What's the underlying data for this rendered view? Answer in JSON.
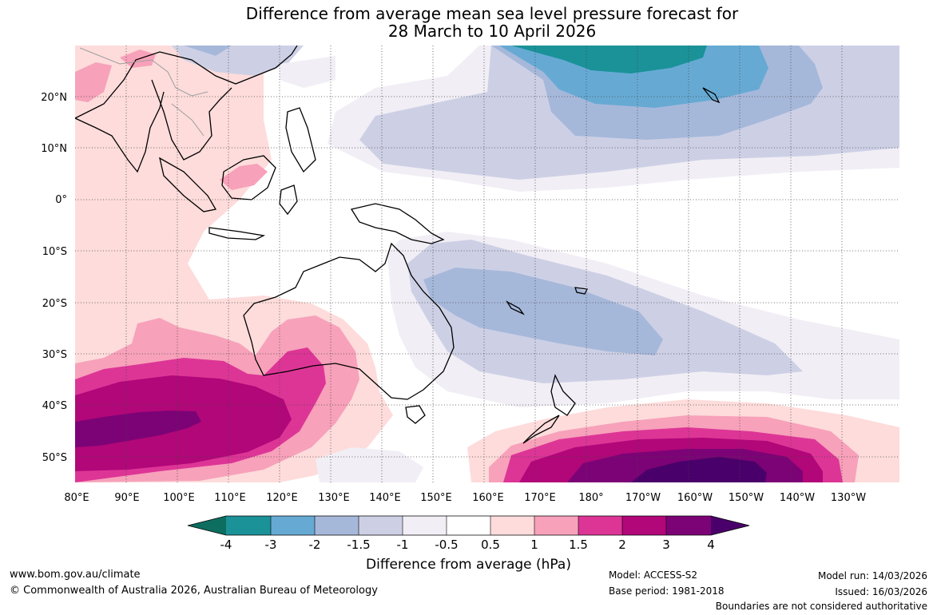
{
  "title": {
    "line1": "Difference from average mean sea level pressure forecast for",
    "line2": "28 March to 10 April 2026"
  },
  "axes": {
    "lon_labels": [
      "80°E",
      "90°E",
      "100°E",
      "110°E",
      "120°E",
      "130°E",
      "140°E",
      "150°E",
      "160°E",
      "170°E",
      "180°",
      "170°W",
      "160°W",
      "150°W",
      "140°W",
      "130°W"
    ],
    "lat_labels": [
      "20°N",
      "10°N",
      "0°",
      "10°S",
      "20°S",
      "30°S",
      "40°S",
      "50°S"
    ]
  },
  "colorbar": {
    "title": "Difference from average (hPa)",
    "ticks": [
      "-4",
      "-3",
      "-2",
      "-1.5",
      "-1",
      "-0.5",
      "0.5",
      "1",
      "1.5",
      "2",
      "3",
      "4"
    ],
    "colors": [
      "#0d6e60",
      "#1a9298",
      "#66aad4",
      "#a6b8da",
      "#cdd0e5",
      "#f1eef5",
      "#ffffff",
      "#fddcdb",
      "#f7a1ba",
      "#dd3596",
      "#b10779",
      "#7c0376",
      "#4a006a"
    ]
  },
  "chart_data": {
    "type": "heatmap",
    "title": "Difference from average mean sea level pressure forecast for 28 March to 10 April 2026",
    "units": "hPa",
    "lon_range": [
      80,
      242
    ],
    "lat_range": [
      -55,
      30
    ],
    "features": [
      {
        "region": "South of Australia (Southern Indian Ocean)",
        "anomaly_max": 4
      },
      {
        "region": "South Pacific south of New Zealand",
        "anomaly_max": 4
      },
      {
        "region": "North Pacific near Hawaii",
        "anomaly_min": -3
      },
      {
        "region": "Coral Sea / South-west Pacific",
        "anomaly_min": -2
      },
      {
        "region": "Maritime Continent / Indian Ocean",
        "anomaly_max": 1.5
      }
    ]
  },
  "footer": {
    "url": "www.bom.gov.au/climate",
    "copyright": "© Commonwealth of Australia 2026, Australian Bureau of Meteorology",
    "model": "Model: ACCESS-S2",
    "base_period": "Base period: 1981-2018",
    "model_run": "Model run: 14/03/2026",
    "issued": "Issued: 16/03/2026",
    "boundaries": "Boundaries are not considered authoritative"
  }
}
